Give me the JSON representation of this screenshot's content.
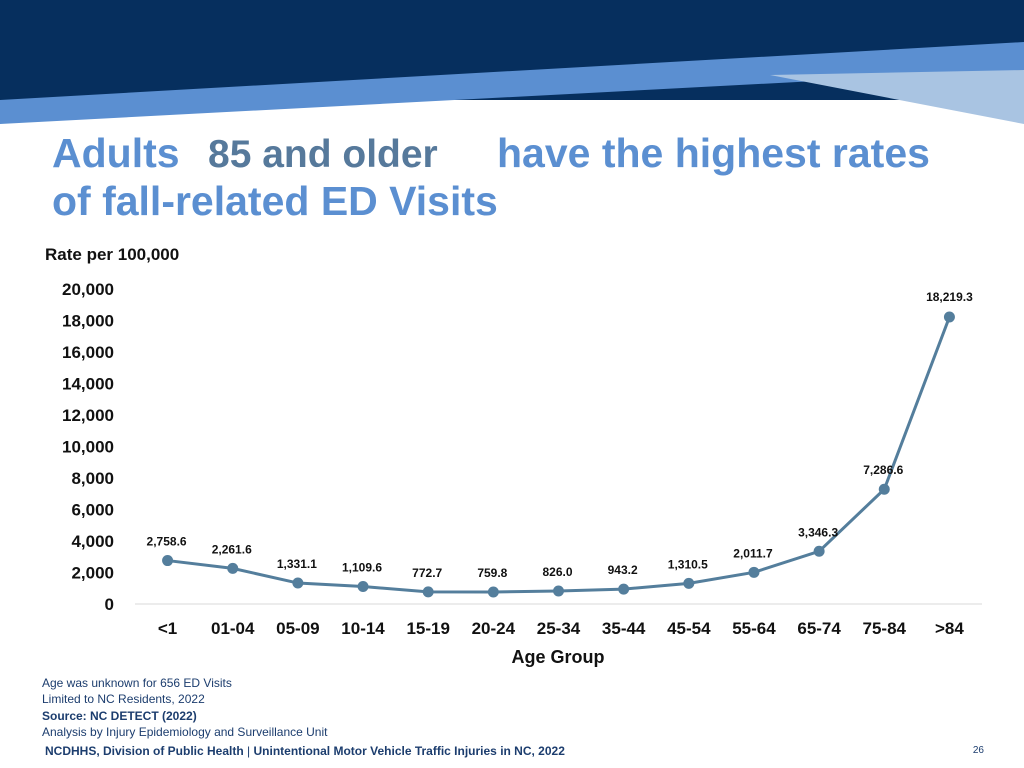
{
  "slide": {
    "title_part1": "Adults",
    "title_highlight": "85 and older",
    "title_part2": "have the highest rates",
    "title_line2": "of fall-related ED Visits",
    "notes": [
      "Age was unknown for 656 ED Visits",
      "Limited to NC Residents, 2022",
      "Source: NC DETECT (2022)",
      "Analysis by Injury Epidemiology and Surveillance Unit"
    ],
    "footer_org": "NCDHHS, Division of Public Health",
    "footer_sep": " | ",
    "footer_title": "Unintentional Motor Vehicle Traffic Injuries in NC, 2022",
    "page_number": "26"
  },
  "colors": {
    "banner_dark": "#062f5e",
    "banner_mid": "#5b8fd1",
    "banner_light": "#a9c4e2",
    "title_blue": "#5b8fd1",
    "title_highlight": "#56799b",
    "line": "#547e9c",
    "axis": "#d9d9d9"
  },
  "chart_data": {
    "type": "line",
    "title": "",
    "ylabel": "Rate per 100,000",
    "xlabel": "Age Group",
    "ylim": [
      0,
      20000
    ],
    "yticks": [
      0,
      2000,
      4000,
      6000,
      8000,
      10000,
      12000,
      14000,
      16000,
      18000,
      20000
    ],
    "ytick_labels": [
      "0",
      "2,000",
      "4,000",
      "6,000",
      "8,000",
      "10,000",
      "12,000",
      "14,000",
      "16,000",
      "18,000",
      "20,000"
    ],
    "grid": false,
    "categories": [
      "<1",
      "01-04",
      "05-09",
      "10-14",
      "15-19",
      "20-24",
      "25-34",
      "35-44",
      "45-54",
      "55-64",
      "65-74",
      "75-84",
      ">84"
    ],
    "values": [
      2758.6,
      2261.6,
      1331.1,
      1109.6,
      772.7,
      759.8,
      826.0,
      943.2,
      1310.5,
      2011.7,
      3346.3,
      7286.6,
      18219.3
    ],
    "data_labels": [
      "2,758.6",
      "2,261.6",
      "1,331.1",
      "1,109.6",
      "772.7",
      "759.8",
      "826.0",
      "943.2",
      "1,310.5",
      "2,011.7",
      "3,346.3",
      "7,286.6",
      "18,219.3"
    ]
  }
}
